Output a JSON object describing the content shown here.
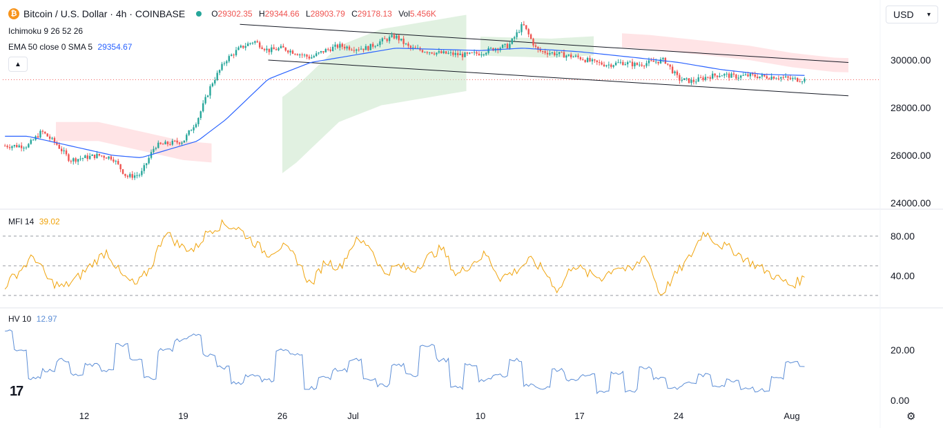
{
  "header": {
    "symbol": "Bitcoin / U.S. Dollar · 4h · COINBASE",
    "open_label": "O",
    "open": "29302.35",
    "high_label": "H",
    "high": "29344.66",
    "low_label": "L",
    "low": "28903.79",
    "close_label": "C",
    "close": "29178.13",
    "vol_label": "Vol",
    "vol": "5.456K"
  },
  "indicators": {
    "ichimoku": "Ichimoku 9 26 52 26",
    "ema_label": "EMA 50 close 0 SMA 5",
    "ema_value": "29354.67",
    "mfi_label": "MFI 14",
    "mfi_value": "39.02",
    "hv_label": "HV 10",
    "hv_value": "12.97"
  },
  "currency": "USD",
  "icons": [
    "bitcoin-icon",
    "market-open-dot-icon",
    "collapse-chevron-icon",
    "tradingview-logo-icon",
    "settings-gear-icon"
  ],
  "colors": {
    "up": "#26a69a",
    "down": "#ef5350",
    "ema": "#2962ff",
    "mfi": "#f0a30a",
    "hv": "#5b8dd6",
    "cloud_bull": "#c8e6c9",
    "cloud_bear": "#ffcdd2"
  },
  "chart_data": [
    {
      "type": "candlestick",
      "title": "Bitcoin / U.S. Dollar · 4h · COINBASE",
      "x_ticks": [
        "12",
        "19",
        "26",
        "Jul",
        "10",
        "17",
        "24",
        "Aug"
      ],
      "y_ticks": [
        "24000.00",
        "26000.00",
        "28000.00",
        "30000.00"
      ],
      "ylim": [
        23800,
        31800
      ],
      "price_path": [
        [
          "Jun 8",
          26400
        ],
        [
          "Jun 9",
          27000
        ],
        [
          "Jun 10",
          26500
        ],
        [
          "Jun 11",
          25800
        ],
        [
          "Jun 12",
          25900
        ],
        [
          "Jun 13",
          26000
        ],
        [
          "Jun 14",
          25900
        ],
        [
          "Jun 15",
          25100
        ],
        [
          "Jun 16",
          25200
        ],
        [
          "Jun 17",
          26400
        ],
        [
          "Jun 18",
          26500
        ],
        [
          "Jun 19",
          26600
        ],
        [
          "Jun 20",
          27500
        ],
        [
          "Jun 21",
          29000
        ],
        [
          "Jun 22",
          30000
        ],
        [
          "Jun 23",
          30500
        ],
        [
          "Jun 24",
          30800
        ],
        [
          "Jun 25",
          30400
        ],
        [
          "Jun 26",
          30500
        ],
        [
          "Jun 27",
          30300
        ],
        [
          "Jun 28",
          30100
        ],
        [
          "Jun 29",
          30400
        ],
        [
          "Jun 30",
          30600
        ],
        [
          "Jul 1",
          30500
        ],
        [
          "Jul 2",
          30500
        ],
        [
          "Jul 3",
          30800
        ],
        [
          "Jul 4",
          31000
        ],
        [
          "Jul 5",
          30500
        ],
        [
          "Jul 6",
          30400
        ],
        [
          "Jul 7",
          30300
        ],
        [
          "Jul 8",
          30250
        ],
        [
          "Jul 9",
          30200
        ],
        [
          "Jul 10",
          30300
        ],
        [
          "Jul 11",
          30500
        ],
        [
          "Jul 12",
          30600
        ],
        [
          "Jul 13",
          31500
        ],
        [
          "Jul 14",
          30400
        ],
        [
          "Jul 15",
          30300
        ],
        [
          "Jul 16",
          30200
        ],
        [
          "Jul 17",
          30100
        ],
        [
          "Jul 18",
          29900
        ],
        [
          "Jul 19",
          29800
        ],
        [
          "Jul 20",
          29900
        ],
        [
          "Jul 21",
          29800
        ],
        [
          "Jul 22",
          29900
        ],
        [
          "Jul 23",
          30000
        ],
        [
          "Jul 24",
          29200
        ],
        [
          "Jul 25",
          29100
        ],
        [
          "Jul 26",
          29300
        ],
        [
          "Jul 27",
          29400
        ],
        [
          "Jul 28",
          29300
        ],
        [
          "Jul 29",
          29350
        ],
        [
          "Jul 30",
          29300
        ],
        [
          "Jul 31",
          29300
        ],
        [
          "Aug 1",
          29200
        ],
        [
          "Aug 2",
          29178
        ]
      ],
      "ema_50": [
        [
          "Jun 8",
          26800
        ],
        [
          "Jun 14",
          26000
        ],
        [
          "Jun 16",
          25900
        ],
        [
          "Jun 20",
          26600
        ],
        [
          "Jun 22",
          27500
        ],
        [
          "Jun 25",
          29200
        ],
        [
          "Jun 28",
          29900
        ],
        [
          "Jul 1",
          30200
        ],
        [
          "Jul 4",
          30500
        ],
        [
          "Jul 7",
          30450
        ],
        [
          "Jul 10",
          30400
        ],
        [
          "Jul 13",
          30500
        ],
        [
          "Jul 17",
          30350
        ],
        [
          "Jul 21",
          30100
        ],
        [
          "Jul 24",
          29900
        ],
        [
          "Jul 27",
          29600
        ],
        [
          "Jul 30",
          29400
        ],
        [
          "Aug 2",
          29354
        ]
      ],
      "channel": {
        "upper": [
          [
            "Jun 23",
            31500
          ],
          [
            "Aug 5",
            29900
          ]
        ],
        "lower": [
          [
            "Jun 25",
            30000
          ],
          [
            "Aug 5",
            28500
          ]
        ]
      },
      "last_price": 29178.13
    },
    {
      "type": "line",
      "name": "MFI 14",
      "y_ticks": [
        "40.00",
        "80.00"
      ],
      "levels": [
        20,
        50,
        80
      ],
      "ylim": [
        17,
        96
      ],
      "values": [
        30,
        45,
        60,
        35,
        28,
        38,
        52,
        65,
        40,
        30,
        48,
        85,
        70,
        66,
        86,
        92,
        88,
        75,
        62,
        70,
        58,
        30,
        55,
        48,
        75,
        72,
        42,
        50,
        45,
        58,
        68,
        40,
        52,
        62,
        38,
        44,
        56,
        46,
        24,
        52,
        42,
        38,
        50,
        44,
        62,
        20,
        40,
        58,
        85,
        72,
        66,
        55,
        47,
        38,
        30,
        39
      ]
    },
    {
      "type": "line",
      "name": "HV 10",
      "y_ticks": [
        "0.00",
        "20.00"
      ],
      "ylim": [
        0,
        30
      ],
      "values": [
        28,
        20,
        9,
        12,
        16,
        10,
        14,
        12,
        22,
        16,
        9,
        20,
        24,
        26,
        18,
        13,
        7,
        10,
        8,
        20,
        18,
        5,
        9,
        12,
        16,
        8,
        6,
        14,
        10,
        22,
        16,
        5,
        14,
        8,
        10,
        16,
        6,
        5,
        12,
        8,
        10,
        3,
        11,
        4,
        13,
        9,
        5,
        7,
        10,
        6,
        8,
        5,
        4,
        9,
        15,
        13
      ]
    }
  ]
}
